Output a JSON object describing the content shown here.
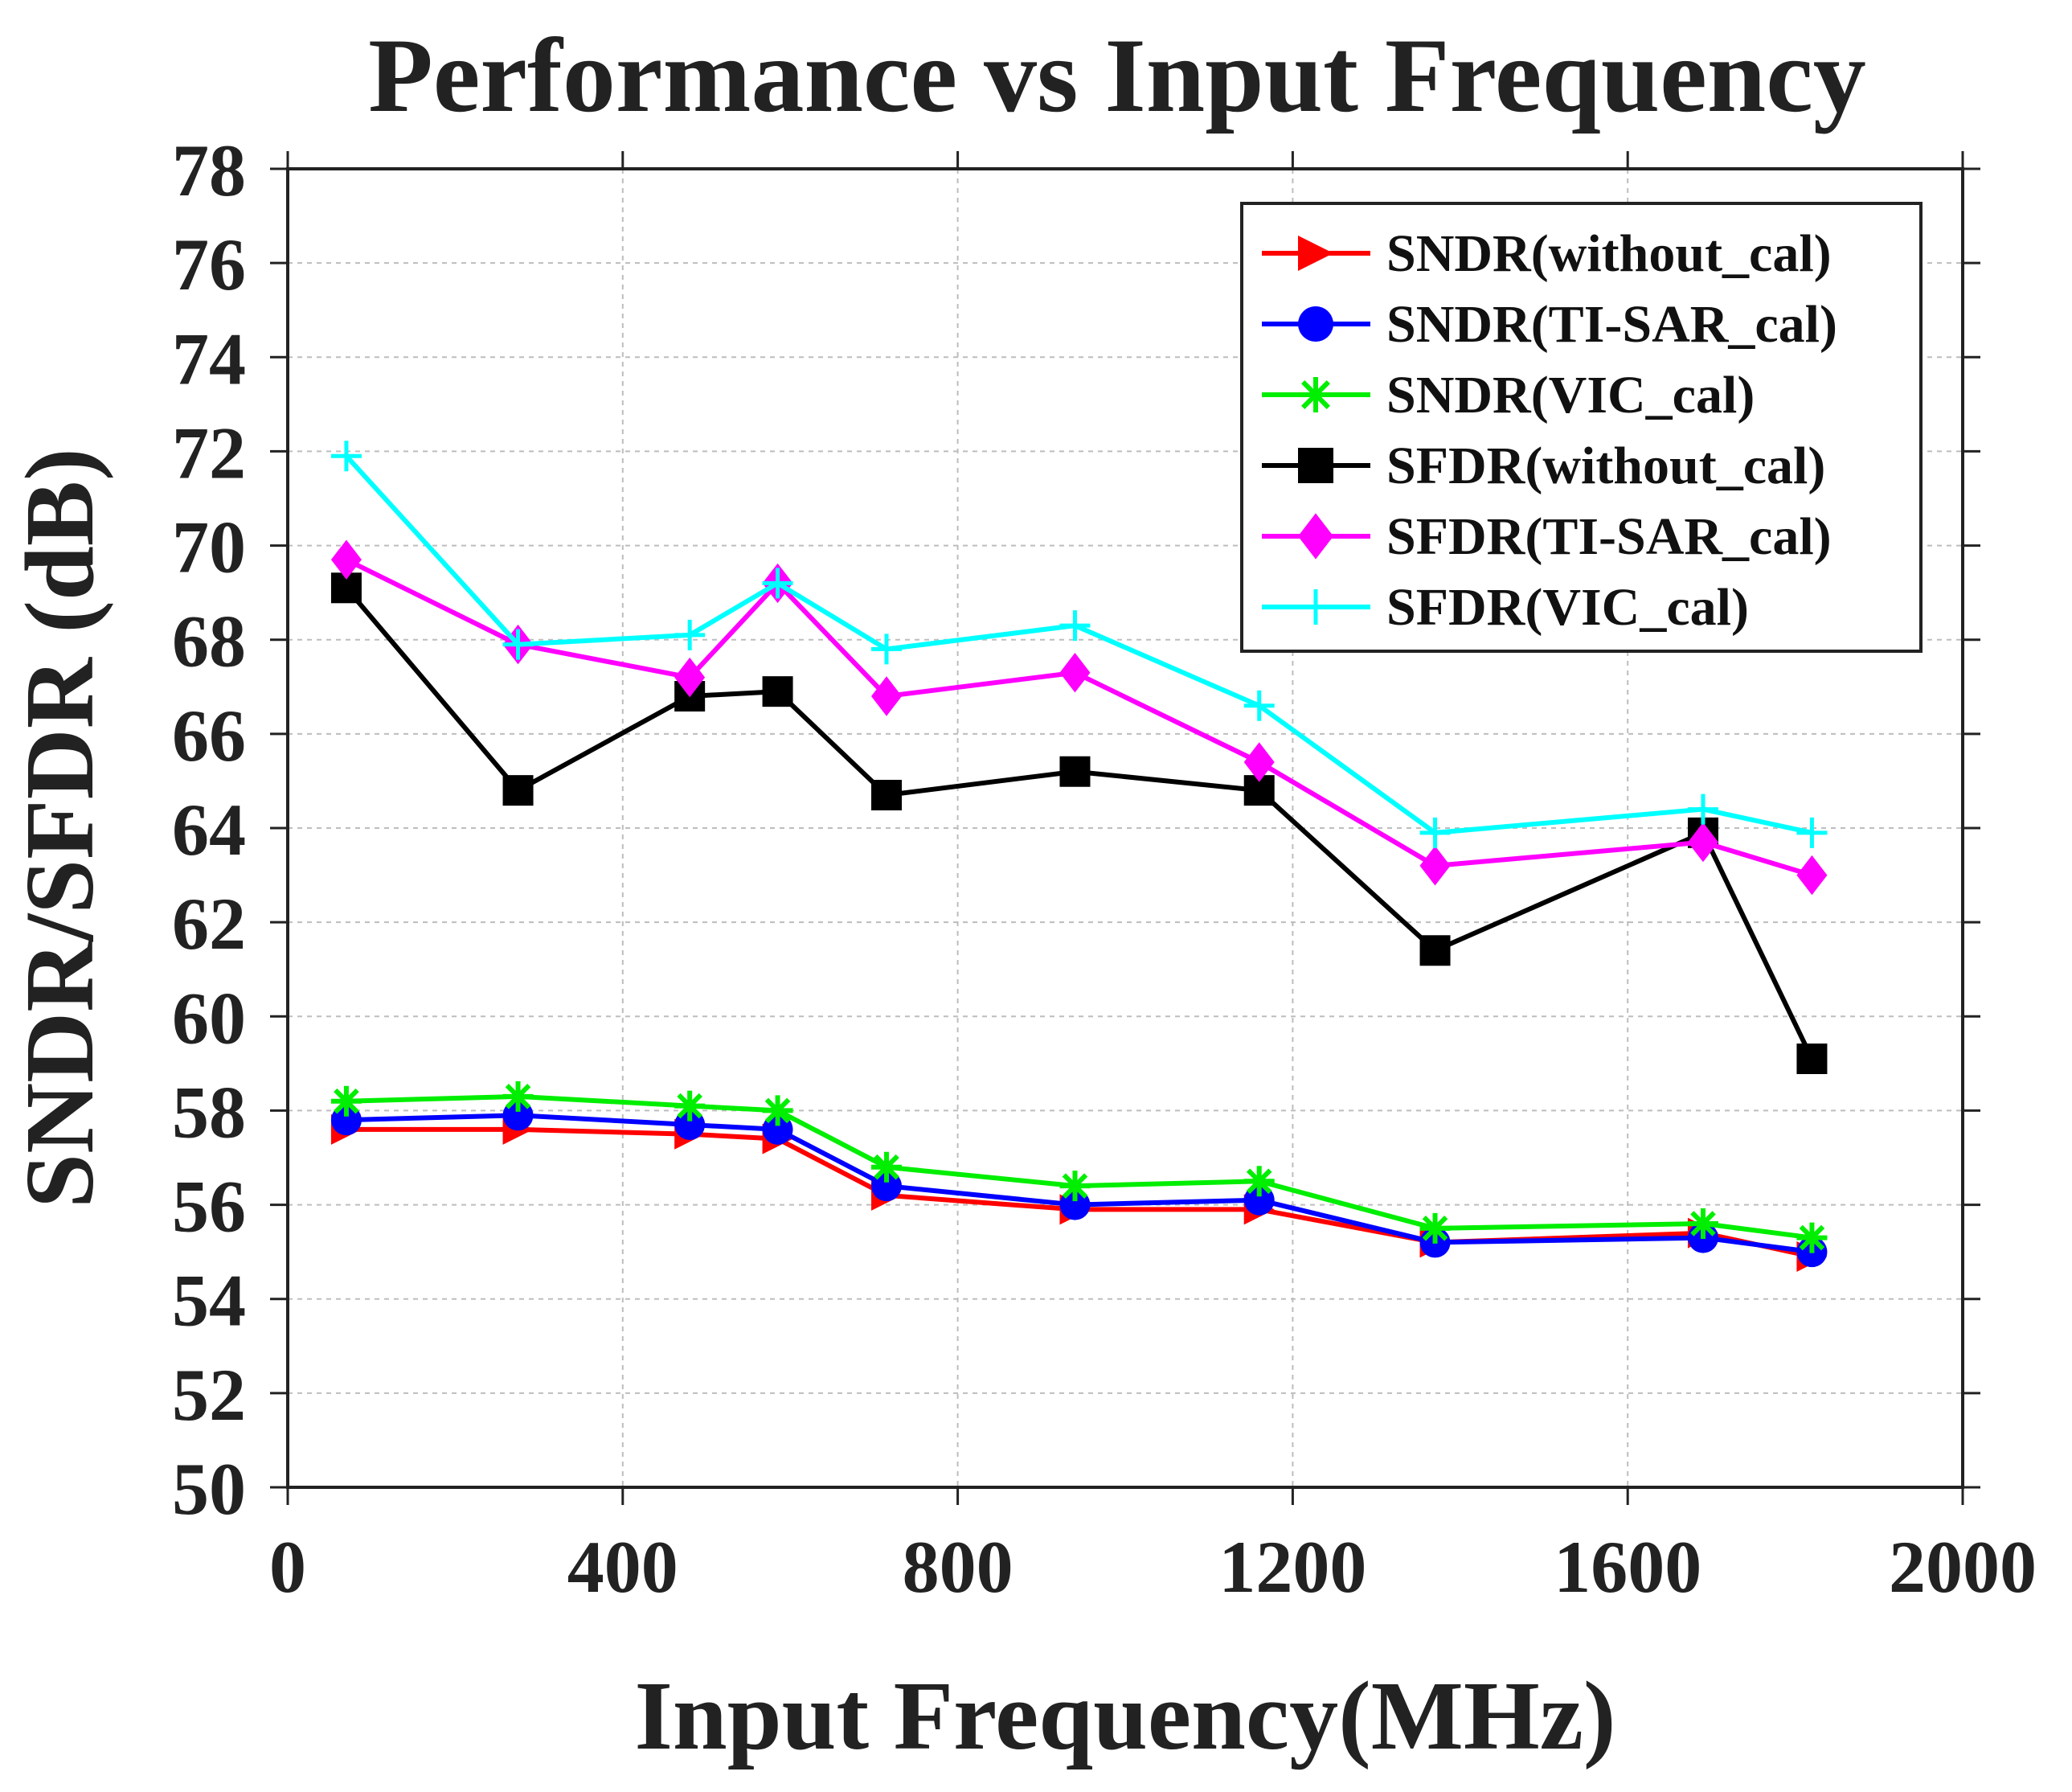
{
  "chart_data": {
    "type": "line",
    "title": "Performance vs Input Frequency",
    "xlabel": "Input Frequency(MHz)",
    "ylabel": "SNDR/SFDR (dB)",
    "xlim": [
      0,
      2000
    ],
    "ylim": [
      50,
      78
    ],
    "xticks": [
      0,
      400,
      800,
      1200,
      1600,
      2000
    ],
    "yticks": [
      50,
      52,
      54,
      56,
      58,
      60,
      62,
      64,
      66,
      68,
      70,
      72,
      74,
      76,
      78
    ],
    "grid": true,
    "legend_position": "top-right",
    "x": [
      70,
      275,
      480,
      585,
      715,
      940,
      1160,
      1370,
      1690,
      1820
    ],
    "series": [
      {
        "name": "SNDR(without_cal)",
        "color": "#ff0000",
        "marker": "triangle-right",
        "values": [
          57.6,
          57.6,
          57.5,
          57.4,
          56.2,
          55.9,
          55.9,
          55.2,
          55.4,
          54.9
        ]
      },
      {
        "name": "SNDR(TI-SAR_cal)",
        "color": "#0000ff",
        "marker": "circle",
        "values": [
          57.8,
          57.9,
          57.7,
          57.6,
          56.4,
          56.0,
          56.1,
          55.2,
          55.3,
          55.0
        ]
      },
      {
        "name": "SNDR(VIC_cal)",
        "color": "#00ee00",
        "marker": "asterisk",
        "values": [
          58.2,
          58.3,
          58.1,
          58.0,
          56.8,
          56.4,
          56.5,
          55.5,
          55.6,
          55.3
        ]
      },
      {
        "name": "SFDR(without_cal)",
        "color": "#000000",
        "marker": "square",
        "values": [
          69.1,
          64.8,
          66.8,
          66.9,
          64.7,
          65.2,
          64.8,
          61.4,
          63.9,
          59.1
        ]
      },
      {
        "name": "SFDR(TI-SAR_cal)",
        "color": "#ff00ff",
        "marker": "diamond",
        "values": [
          69.7,
          67.9,
          67.2,
          69.2,
          66.8,
          67.3,
          65.4,
          63.2,
          63.7,
          63.0
        ]
      },
      {
        "name": "SFDR(VIC_cal)",
        "color": "#00ffff",
        "marker": "plus",
        "values": [
          71.9,
          67.9,
          68.1,
          69.2,
          67.8,
          68.3,
          66.6,
          63.9,
          64.4,
          63.9
        ]
      }
    ]
  }
}
